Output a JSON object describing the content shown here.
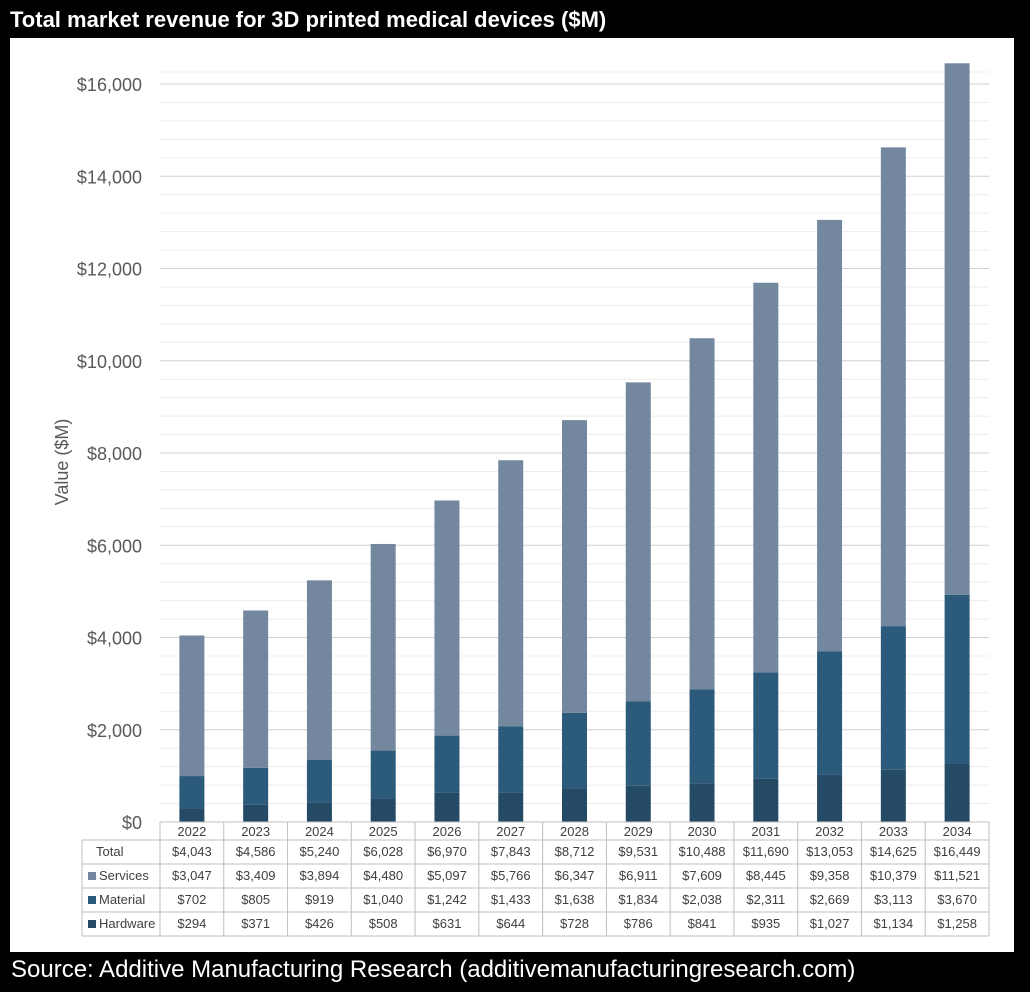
{
  "title": "Total market revenue for 3D printed medical devices ($M)",
  "source": "Source: Additive Manufacturing Research (additivemanufacturingresearch.com)",
  "colors": {
    "services": "#73889f",
    "material": "#2c5a7b",
    "hardware": "#254a65",
    "gridline": "#d9d9d9",
    "axis_text": "#595959"
  },
  "chart_data": {
    "type": "bar",
    "stacked": true,
    "title": "Total market revenue for 3D printed medical devices ($M)",
    "xlabel": "",
    "ylabel": "Value ($M)",
    "ylim": [
      0,
      16000
    ],
    "yticks": [
      0,
      2000,
      4000,
      6000,
      8000,
      10000,
      12000,
      14000,
      16000
    ],
    "ytick_labels": [
      "$0",
      "$2,000",
      "$4,000",
      "$6,000",
      "$8,000",
      "$10,000",
      "$12,000",
      "$14,000",
      "$16,000"
    ],
    "categories": [
      "2022",
      "2023",
      "2024",
      "2025",
      "2026",
      "2027",
      "2028",
      "2029",
      "2030",
      "2031",
      "2032",
      "2033",
      "2034"
    ],
    "series": [
      {
        "name": "Hardware",
        "values": [
          294,
          371,
          426,
          508,
          631,
          644,
          728,
          786,
          841,
          935,
          1027,
          1134,
          1258
        ],
        "labels": [
          "$294",
          "$371",
          "$426",
          "$508",
          "$631",
          "$644",
          "$728",
          "$786",
          "$841",
          "$935",
          "$1,027",
          "$1,134",
          "$1,258"
        ]
      },
      {
        "name": "Material",
        "values": [
          702,
          805,
          919,
          1040,
          1242,
          1433,
          1638,
          1834,
          2038,
          2311,
          2669,
          3113,
          3670
        ],
        "labels": [
          "$702",
          "$805",
          "$919",
          "$1,040",
          "$1,242",
          "$1,433",
          "$1,638",
          "$1,834",
          "$2,038",
          "$2,311",
          "$2,669",
          "$3,113",
          "$3,670"
        ]
      },
      {
        "name": "Services",
        "values": [
          3047,
          3409,
          3894,
          4480,
          5097,
          5766,
          6347,
          6911,
          7609,
          8445,
          9358,
          10379,
          11521
        ],
        "labels": [
          "$3,047",
          "$3,409",
          "$3,894",
          "$4,480",
          "$5,097",
          "$5,766",
          "$6,347",
          "$6,911",
          "$7,609",
          "$8,445",
          "$9,358",
          "$10,379",
          "$11,521"
        ]
      }
    ],
    "table": {
      "rows": [
        {
          "name": "Total",
          "key": "total",
          "labels": [
            "$4,043",
            "$4,586",
            "$5,240",
            "$6,028",
            "$6,970",
            "$7,843",
            "$8,712",
            "$9,531",
            "$10,488",
            "$11,690",
            "$13,053",
            "$14,625",
            "$16,449"
          ]
        },
        {
          "name": "Services",
          "key": "services",
          "labels": [
            "$3,047",
            "$3,409",
            "$3,894",
            "$4,480",
            "$5,097",
            "$5,766",
            "$6,347",
            "$6,911",
            "$7,609",
            "$8,445",
            "$9,358",
            "$10,379",
            "$11,521"
          ]
        },
        {
          "name": "Material",
          "key": "material",
          "labels": [
            "$702",
            "$805",
            "$919",
            "$1,040",
            "$1,242",
            "$1,433",
            "$1,638",
            "$1,834",
            "$2,038",
            "$2,311",
            "$2,669",
            "$3,113",
            "$3,670"
          ]
        },
        {
          "name": "Hardware",
          "key": "hardware",
          "labels": [
            "$294",
            "$371",
            "$426",
            "$508",
            "$631",
            "$644",
            "$728",
            "$786",
            "$841",
            "$935",
            "$1,027",
            "$1,134",
            "$1,258"
          ]
        }
      ]
    }
  }
}
